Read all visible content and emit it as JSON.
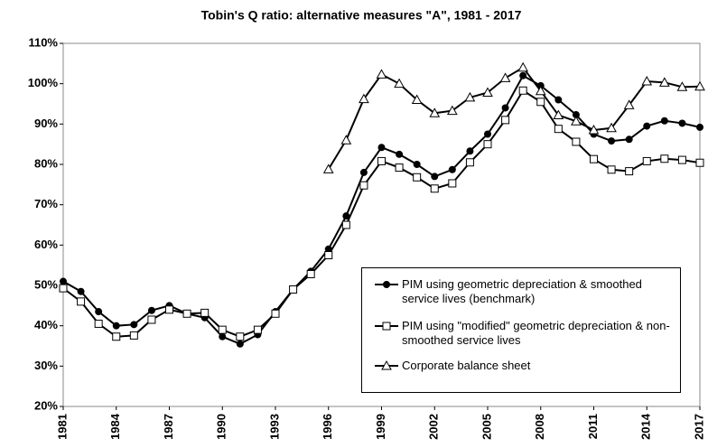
{
  "chart_data": {
    "type": "line",
    "title": "Tobin's Q ratio: alternative measures \"A\", 1981 - 2017",
    "x": [
      1981,
      1982,
      1983,
      1984,
      1985,
      1986,
      1987,
      1988,
      1989,
      1990,
      1991,
      1992,
      1993,
      1994,
      1995,
      1996,
      1997,
      1998,
      1999,
      2000,
      2001,
      2002,
      2003,
      2004,
      2005,
      2006,
      2007,
      2008,
      2009,
      2010,
      2011,
      2012,
      2013,
      2014,
      2015,
      2016,
      2017
    ],
    "xlim": [
      1981,
      2017
    ],
    "xticks": [
      1981,
      1984,
      1987,
      1990,
      1993,
      1996,
      1999,
      2002,
      2005,
      2008,
      2011,
      2014,
      2017
    ],
    "ylim": [
      20,
      110
    ],
    "yticks": [
      {
        "value": 20,
        "label": "20%"
      },
      {
        "value": 30,
        "label": "30%"
      },
      {
        "value": 40,
        "label": "40%"
      },
      {
        "value": 50,
        "label": "50%"
      },
      {
        "value": 60,
        "label": "60%"
      },
      {
        "value": 70,
        "label": "70%"
      },
      {
        "value": 80,
        "label": "80%"
      },
      {
        "value": 90,
        "label": "90%"
      },
      {
        "value": 100,
        "label": "100%"
      },
      {
        "value": 110,
        "label": "110%"
      }
    ],
    "legend": "lower right",
    "series": [
      {
        "name": "PIM using geometric depreciation & smoothed service lives (benchmark)",
        "color": "#000000",
        "marker": "circle",
        "values": [
          51,
          48.5,
          43.5,
          40,
          40.3,
          43.8,
          45,
          43,
          42,
          37.3,
          35.5,
          37.8,
          43.5,
          49,
          53.5,
          59,
          67.2,
          78,
          84.2,
          82.5,
          80,
          77,
          78.7,
          83.3,
          87.5,
          94,
          102,
          99.5,
          96,
          92.3,
          87.5,
          85.8,
          86.2,
          89.5,
          90.8,
          90.2,
          89.2
        ]
      },
      {
        "name": "PIM using \"modified\" geometric depreciation & non-smoothed service lives",
        "color": "#000000",
        "marker": "square",
        "values": [
          49.3,
          46,
          40.5,
          37.3,
          37.6,
          41.5,
          44,
          43,
          43.2,
          39,
          37.3,
          39,
          43,
          49,
          52.8,
          57.5,
          65,
          74.8,
          80.8,
          79.2,
          76.8,
          74,
          75.3,
          80.5,
          85,
          91,
          98.3,
          95.5,
          88.8,
          85.6,
          81.3,
          78.7,
          78.3,
          80.8,
          81.4,
          81.1,
          80.4
        ]
      },
      {
        "name": "Corporate balance sheet",
        "color": "#000000",
        "marker": "triangle",
        "values": [
          null,
          null,
          null,
          null,
          null,
          null,
          null,
          null,
          null,
          null,
          null,
          null,
          null,
          null,
          null,
          78.8,
          86,
          96.2,
          102.3,
          100,
          96,
          92.7,
          93.3,
          96.6,
          97.8,
          101.4,
          104,
          98.2,
          92.2,
          90.7,
          88.5,
          89,
          94.7,
          100.6,
          100.3,
          99.2,
          99.3
        ]
      }
    ]
  }
}
